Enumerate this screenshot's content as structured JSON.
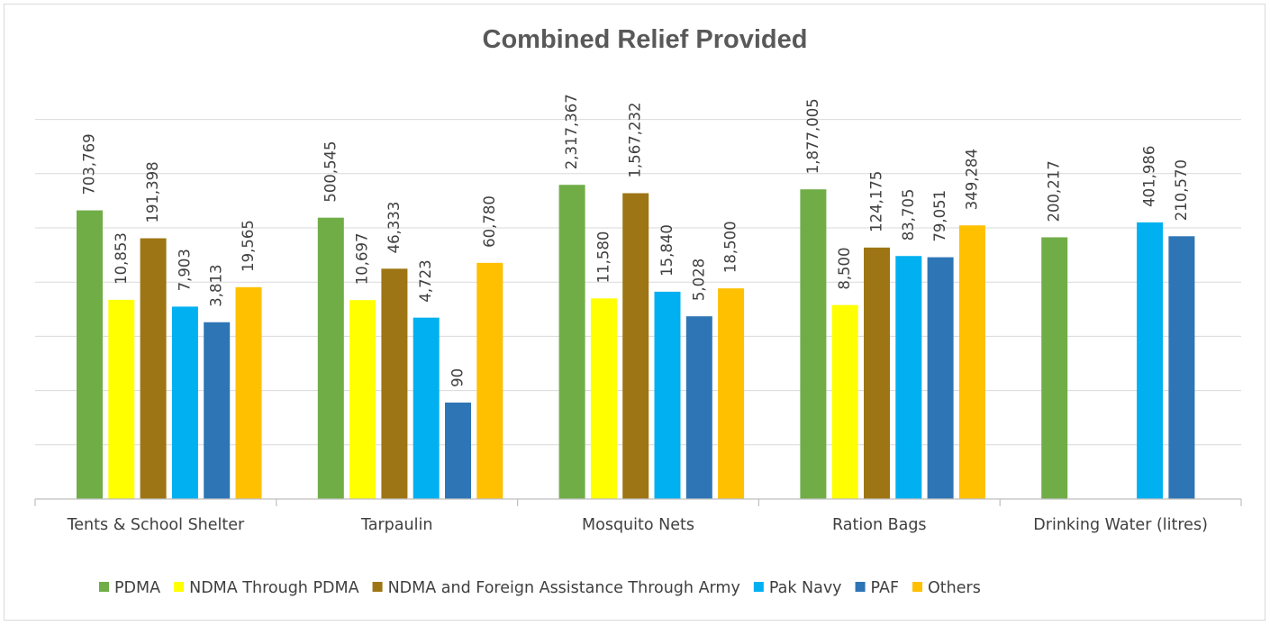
{
  "chart_data": {
    "type": "bar",
    "title": "Combined Relief Provided",
    "xlabel": "",
    "ylabel": "",
    "yscale": "log",
    "y_axis_labels": "hidden",
    "grid": "horizontal",
    "legend_position": "bottom",
    "categories": [
      "Tents & School Shelter",
      "Tarpaulin",
      "Mosquito Nets",
      "Ration Bags",
      "Drinking Water (litres)"
    ],
    "series": [
      {
        "name": "PDMA",
        "color": "#70ad47",
        "values": [
          703769,
          500545,
          2317367,
          1877005,
          200217
        ],
        "labels": [
          "703,769",
          "500,545",
          "2,317,367",
          "1,877,005",
          "200,217"
        ]
      },
      {
        "name": "NDMA Through PDMA",
        "color": "#ffff00",
        "values": [
          10853,
          10697,
          11580,
          8500,
          null
        ],
        "labels": [
          "10,853",
          "10,697",
          "11,580",
          "8,500",
          null
        ]
      },
      {
        "name": "NDMA and Foreign Assistance Through Army",
        "color": "#9e7514",
        "values": [
          191398,
          46333,
          1567232,
          124175,
          null
        ],
        "labels": [
          "191,398",
          "46,333",
          "1,567,232",
          "124,175",
          null
        ]
      },
      {
        "name": "Pak Navy",
        "color": "#00b0f0",
        "values": [
          7903,
          4723,
          15840,
          83705,
          401986
        ],
        "labels": [
          "7,903",
          "4,723",
          "15,840",
          "83,705",
          "401,986"
        ]
      },
      {
        "name": "PAF",
        "color": "#2e75b6",
        "values": [
          3813,
          90,
          5028,
          79051,
          210570
        ],
        "labels": [
          "3,813",
          "90",
          "5,028",
          "79,051",
          "210,570"
        ]
      },
      {
        "name": "Others",
        "color": "#ffc000",
        "values": [
          19565,
          60780,
          18500,
          349284,
          null
        ],
        "labels": [
          "19,565",
          "60,780",
          "18,500",
          "349,284",
          null
        ]
      }
    ]
  }
}
